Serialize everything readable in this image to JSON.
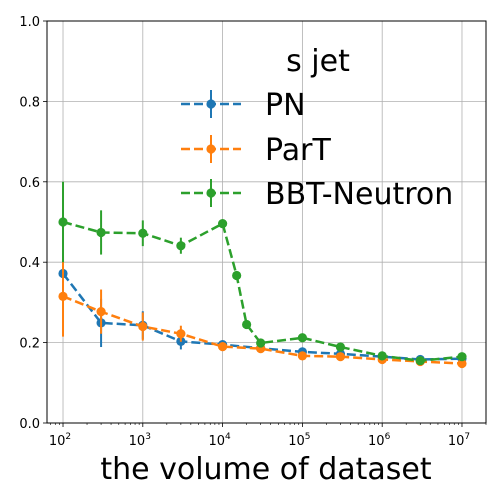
{
  "chart_data": {
    "type": "line",
    "title": "",
    "xlabel": "the volume of dataset",
    "ylabel": "",
    "xscale": "log",
    "xlim": [
      63,
      20000000
    ],
    "ylim": [
      0,
      1
    ],
    "grid": true,
    "legend": {
      "title": "s jet",
      "placement": "top-right"
    },
    "x_ticks": [
      {
        "value": 100,
        "label": "10",
        "exp": "2"
      },
      {
        "value": 1000,
        "label": "10",
        "exp": "3"
      },
      {
        "value": 10000,
        "label": "10",
        "exp": "4"
      },
      {
        "value": 100000,
        "label": "10",
        "exp": "5"
      },
      {
        "value": 1000000,
        "label": "10",
        "exp": "6"
      },
      {
        "value": 10000000,
        "label": "10",
        "exp": "7"
      }
    ],
    "y_ticks": [
      {
        "value": 0,
        "label": "0.0"
      },
      {
        "value": 0.2,
        "label": "0.2"
      },
      {
        "value": 0.4,
        "label": "0.4"
      },
      {
        "value": 0.6,
        "label": "0.6"
      },
      {
        "value": 0.8,
        "label": "0.8"
      },
      {
        "value": 1.0,
        "label": "1.0"
      }
    ],
    "series": [
      {
        "name": "PN",
        "color": "#1f77b4",
        "x": [
          100,
          300,
          1000,
          3000,
          10000,
          30000,
          100000,
          300000,
          1000000,
          3000000,
          10000000
        ],
        "y": [
          0.372,
          0.249,
          0.243,
          0.203,
          0.195,
          0.186,
          0.177,
          0.172,
          0.165,
          0.158,
          0.16
        ],
        "err": [
          0.05,
          0.06,
          0.035,
          0.02,
          0.01,
          0.008,
          0.007,
          0.006,
          0.005,
          0.005,
          0.005
        ]
      },
      {
        "name": "ParT",
        "color": "#ff7f0e",
        "x": [
          100,
          300,
          1000,
          3000,
          10000,
          30000,
          100000,
          300000,
          1000000,
          3000000,
          10000000
        ],
        "y": [
          0.315,
          0.277,
          0.24,
          0.222,
          0.19,
          0.185,
          0.167,
          0.165,
          0.158,
          0.153,
          0.148
        ],
        "err": [
          0.1,
          0.055,
          0.035,
          0.02,
          0.01,
          0.008,
          0.007,
          0.006,
          0.005,
          0.005,
          0.005
        ]
      },
      {
        "name": "BBT-Neutron",
        "color": "#2ca02c",
        "x": [
          100,
          300,
          1000,
          3000,
          10000,
          15000,
          20000,
          30000,
          100000,
          300000,
          1000000,
          3000000,
          10000000
        ],
        "y": [
          0.5,
          0.474,
          0.472,
          0.441,
          0.496,
          0.367,
          0.245,
          0.199,
          0.212,
          0.189,
          0.167,
          0.155,
          0.165
        ],
        "err": [
          0.1,
          0.055,
          0.032,
          0.02,
          0.01,
          0.008,
          0.008,
          0.008,
          0.007,
          0.006,
          0.005,
          0.005,
          0.005
        ]
      }
    ]
  }
}
